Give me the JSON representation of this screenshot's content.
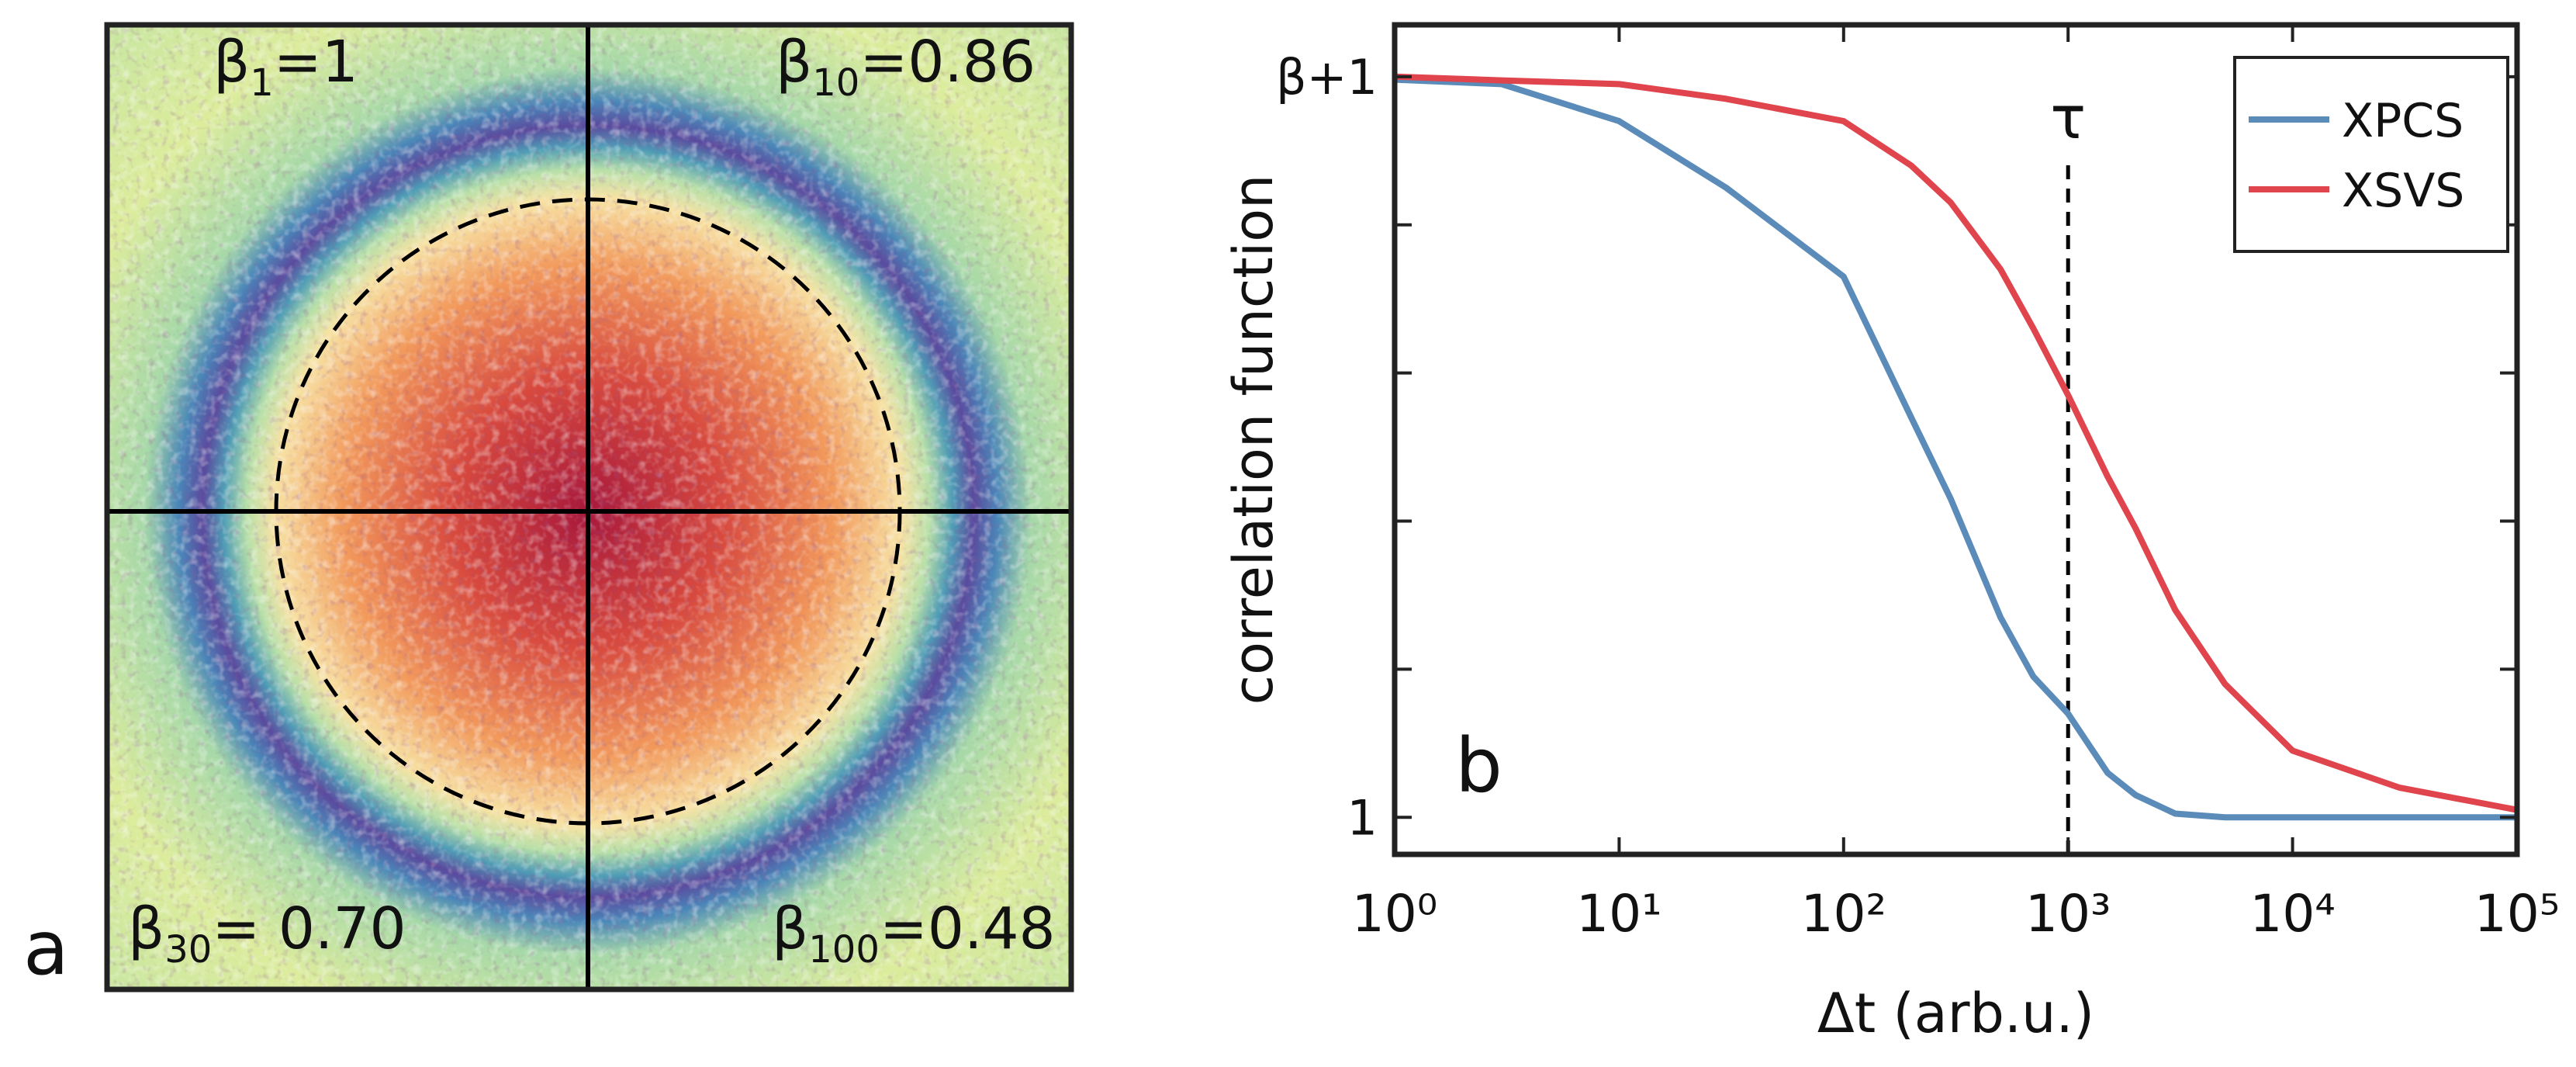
{
  "panel_a": {
    "letter": "a",
    "quadrant_labels": [
      {
        "symbol": "β",
        "subscript": "1",
        "text": "=1"
      },
      {
        "symbol": "β",
        "subscript": "10",
        "text": "=0.86"
      },
      {
        "symbol": "β",
        "subscript": "30",
        "text": "= 0.70"
      },
      {
        "symbol": "β",
        "subscript": "100",
        "text": "=0.48"
      }
    ]
  },
  "chart_data": {
    "type": "line",
    "letter": "b",
    "x_label": "Δt (arb.u.)",
    "y_label": "correlation function",
    "xscale": "log",
    "xlim": [
      1,
      100000
    ],
    "xticks": [
      {
        "value": 1,
        "label": "10⁰"
      },
      {
        "value": 10,
        "label": "10¹"
      },
      {
        "value": 100,
        "label": "10²"
      },
      {
        "value": 1000,
        "label": "10³"
      },
      {
        "value": 10000,
        "label": "10⁴"
      },
      {
        "value": 100000,
        "label": "10⁵"
      }
    ],
    "ylim": [
      0.95,
      2.07
    ],
    "yticks": [
      1,
      {
        "value": 2,
        "label": "β+1"
      }
    ],
    "yminorticks": [
      1.2,
      1.4,
      1.6,
      1.8
    ],
    "legend": "upper right",
    "x": [
      1,
      3,
      10,
      30,
      100,
      200,
      300,
      500,
      700,
      1000,
      1500,
      2000,
      3000,
      5000,
      10000,
      30000,
      100000
    ],
    "series": [
      {
        "name": "XPCS",
        "color": "#5b8bb8",
        "values": [
          1.996,
          1.99,
          1.94,
          1.85,
          1.73,
          1.54,
          1.43,
          1.27,
          1.19,
          1.14,
          1.06,
          1.03,
          1.005,
          1.0,
          1.0,
          1.0,
          1.0
        ]
      },
      {
        "name": "XSVS",
        "color": "#e0444c",
        "values": [
          2.0,
          1.995,
          1.99,
          1.97,
          1.94,
          1.88,
          1.83,
          1.74,
          1.66,
          1.57,
          1.46,
          1.39,
          1.28,
          1.18,
          1.09,
          1.04,
          1.01
        ]
      }
    ],
    "tau_marker": {
      "x": 1000,
      "label": "τ"
    }
  }
}
